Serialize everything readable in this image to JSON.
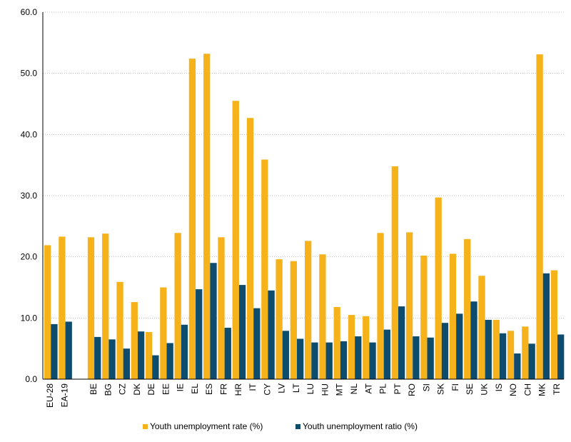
{
  "chart_data": {
    "type": "bar",
    "title": "",
    "xlabel": "",
    "ylabel": "",
    "ylim": [
      0,
      60
    ],
    "yticks": [
      0,
      10,
      20,
      30,
      40,
      50,
      60
    ],
    "ytick_labels": [
      "0.0",
      "10.0",
      "20.0",
      "30.0",
      "40.0",
      "50.0",
      "60.0"
    ],
    "grid": "horizontal dotted",
    "legend_position": "bottom",
    "categories": [
      "EU-28",
      "EA-19",
      "",
      "BE",
      "BG",
      "CZ",
      "DK",
      "DE",
      "EE",
      "IE",
      "EL",
      "ES",
      "FR",
      "HR",
      "IT",
      "CY",
      "LV",
      "LT",
      "LU",
      "HU",
      "MT",
      "NL",
      "AT",
      "PL",
      "PT",
      "RO",
      "SI",
      "SK",
      "FI",
      "SE",
      "UK",
      "IS",
      "NO",
      "CH",
      "MK",
      "TR"
    ],
    "series": [
      {
        "name": "Youth unemployment rate (%)",
        "color": "#F6B21B",
        "values": [
          21.9,
          23.3,
          null,
          23.2,
          23.8,
          15.9,
          12.6,
          7.7,
          15.0,
          23.9,
          52.4,
          53.2,
          23.2,
          45.5,
          42.7,
          35.9,
          19.6,
          19.3,
          22.6,
          20.4,
          11.8,
          10.5,
          10.3,
          23.9,
          34.8,
          24.0,
          20.2,
          29.7,
          20.5,
          22.9,
          16.9,
          9.7,
          7.9,
          8.6,
          53.1,
          17.8
        ]
      },
      {
        "name": "Youth unemployment ratio (%)",
        "color": "#0E4C6D",
        "values": [
          9.0,
          9.4,
          null,
          6.9,
          6.5,
          5.0,
          7.8,
          3.9,
          5.9,
          8.9,
          14.7,
          19.0,
          8.4,
          15.4,
          11.6,
          14.5,
          7.9,
          6.6,
          6.0,
          6.0,
          6.2,
          7.0,
          6.0,
          8.1,
          11.9,
          7.0,
          6.8,
          9.2,
          10.7,
          12.7,
          9.7,
          7.5,
          4.2,
          5.8,
          17.3,
          7.3
        ]
      }
    ]
  }
}
